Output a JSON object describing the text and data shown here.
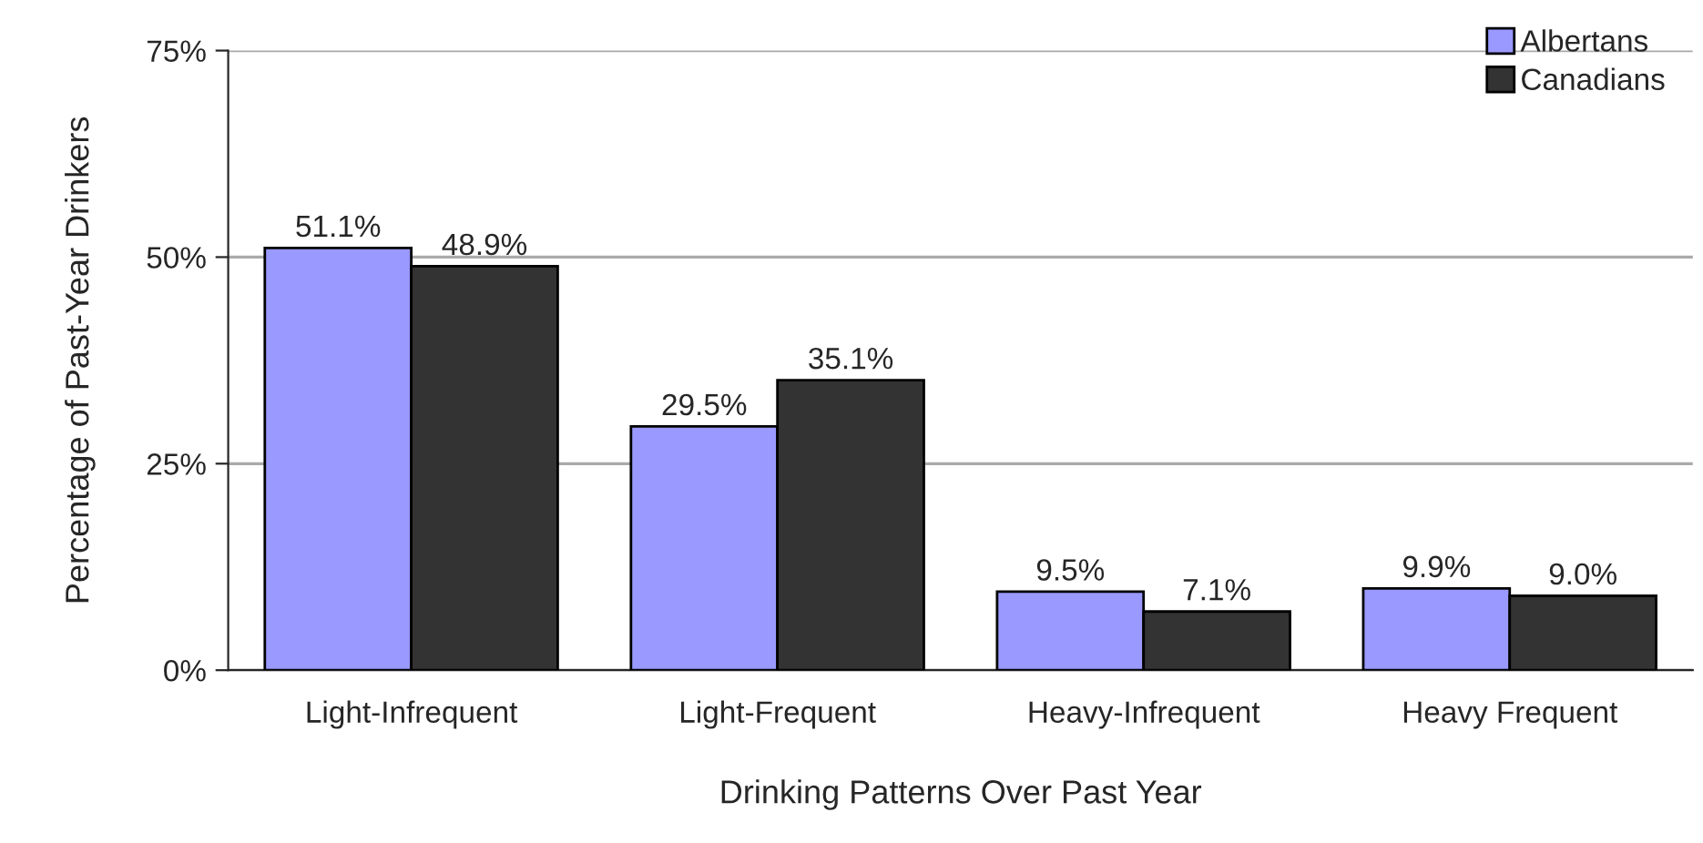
{
  "chart_data": {
    "type": "bar",
    "xlabel": "Drinking Patterns Over Past Year",
    "ylabel": "Percentage of Past-Year Drinkers",
    "categories": [
      "Light-Infrequent",
      "Light-Frequent",
      "Heavy-Infrequent",
      "Heavy Frequent"
    ],
    "series": [
      {
        "name": "Albertans",
        "color": "#9999ff",
        "values": [
          51.1,
          29.5,
          9.5,
          9.9
        ],
        "value_labels": [
          "51.1%",
          "29.5%",
          "9.5%",
          "9.9%"
        ]
      },
      {
        "name": "Canadians",
        "color": "#333333",
        "values": [
          48.9,
          35.1,
          7.1,
          9.0
        ],
        "value_labels": [
          "48.9%",
          "35.1%",
          "7.1%",
          "9.0%"
        ]
      }
    ],
    "ylim": [
      0,
      75
    ],
    "yticks": [
      {
        "value": 0,
        "label": "0%"
      },
      {
        "value": 25,
        "label": "25%"
      },
      {
        "value": 50,
        "label": "50%"
      },
      {
        "value": 75,
        "label": "75%"
      }
    ],
    "grid": "y",
    "legend": "top right"
  }
}
